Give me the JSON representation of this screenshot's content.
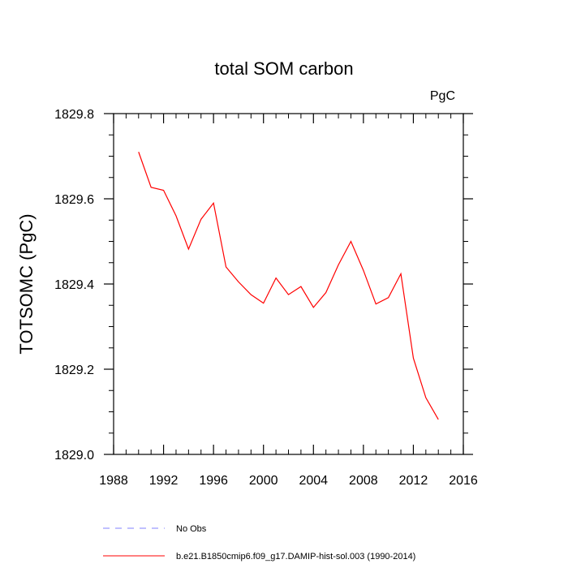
{
  "chart_data": {
    "type": "line",
    "title": "total SOM carbon",
    "units_label": "PgC",
    "ylabel": "TOTSOMC  (PgC)",
    "xlabel": "",
    "xlim": [
      1988,
      2016
    ],
    "ylim": [
      1829.0,
      1829.8
    ],
    "x_ticks": [
      1988,
      1992,
      1996,
      2000,
      2004,
      2008,
      2012,
      2016
    ],
    "x_tick_labels": [
      "1988",
      "1992",
      "1996",
      "2000",
      "2004",
      "2008",
      "2012",
      "2016"
    ],
    "y_ticks": [
      1829.0,
      1829.2,
      1829.4,
      1829.6,
      1829.8
    ],
    "y_tick_labels": [
      "1829.0",
      "1829.2",
      "1829.4",
      "1829.6",
      "1829.8"
    ],
    "grid": false,
    "series": [
      {
        "name": "b.e21.B1850cmip6.f09_g17.DAMIP-hist-sol.003 (1990-2014)",
        "color": "#ff0000",
        "style": "solid",
        "x": [
          1990,
          1991,
          1992,
          1993,
          1994,
          1995,
          1996,
          1997,
          1998,
          1999,
          2000,
          2001,
          2002,
          2003,
          2004,
          2005,
          2006,
          2007,
          2008,
          2009,
          2010,
          2011,
          2012,
          2013,
          2014
        ],
        "y": [
          1829.71,
          1829.627,
          1829.62,
          1829.56,
          1829.482,
          1829.552,
          1829.59,
          1829.44,
          1829.405,
          1829.375,
          1829.355,
          1829.414,
          1829.375,
          1829.394,
          1829.345,
          1829.38,
          1829.445,
          1829.5,
          1829.432,
          1829.353,
          1829.368,
          1829.424,
          1829.226,
          1829.133,
          1829.082
        ]
      }
    ],
    "legend": {
      "placement": "bottom-left",
      "entries": [
        {
          "label": "No Obs",
          "color": "#8080ff",
          "style": "dashed"
        },
        {
          "label": "b.e21.B1850cmip6.f09_g17.DAMIP-hist-sol.003 (1990-2014)",
          "color": "#ff0000",
          "style": "solid"
        }
      ]
    }
  }
}
